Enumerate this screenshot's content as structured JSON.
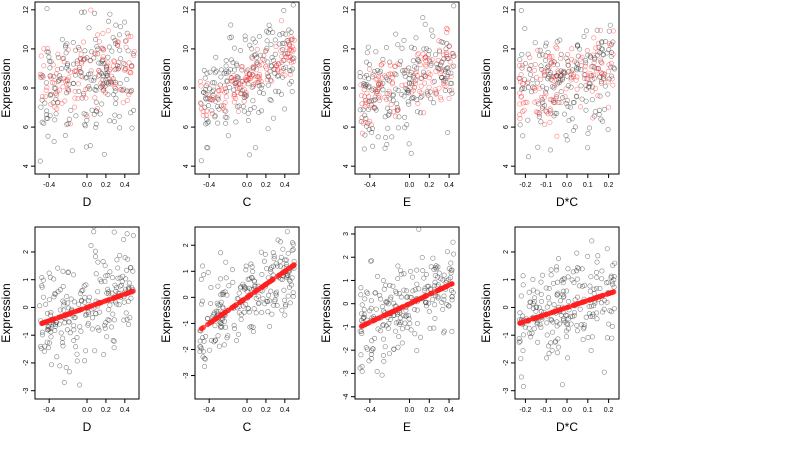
{
  "chart_data": [
    {
      "type": "scatter",
      "panel": "top-1",
      "xlabel": "D",
      "ylabel": "Expression",
      "xlim": [
        -0.55,
        0.55
      ],
      "ylim": [
        3.6,
        12.4
      ],
      "xticks": [
        -0.4,
        0.0,
        0.2,
        0.4
      ],
      "xtick_labels": [
        "-0.4",
        "0.0",
        "0.2",
        "0.4"
      ],
      "yticks": [
        4,
        6,
        8,
        10,
        12
      ],
      "ytick_labels": [
        "4",
        "6",
        "8",
        "10",
        "12"
      ],
      "series": [
        {
          "name": "",
          "color": "#222222",
          "marker": "open-circle",
          "x_range": [
            -0.5,
            0.5
          ],
          "y_center": 8.4,
          "y_spread": 1.4,
          "slope": 1.5,
          "count": 200
        },
        {
          "name": "",
          "color": "#ff2020",
          "marker": "open-circle",
          "x_range": [
            -0.5,
            0.5
          ],
          "y_center": 8.6,
          "y_spread": 0.9,
          "slope": 1.5,
          "count": 130
        }
      ]
    },
    {
      "type": "scatter",
      "panel": "top-2",
      "xlabel": "C",
      "ylabel": "Expression",
      "xlim": [
        -0.55,
        0.55
      ],
      "ylim": [
        3.6,
        12.4
      ],
      "xticks": [
        -0.4,
        0.0,
        0.2,
        0.4
      ],
      "xtick_labels": [
        "-0.4",
        "0.0",
        "0.2",
        "0.4"
      ],
      "yticks": [
        4,
        6,
        8,
        10,
        12
      ],
      "ytick_labels": [
        "4",
        "6",
        "8",
        "10",
        "12"
      ],
      "series": [
        {
          "name": "",
          "color": "#222222",
          "marker": "open-circle",
          "x_range": [
            -0.5,
            0.5
          ],
          "y_center": 8.4,
          "y_spread": 1.3,
          "slope": 2.8,
          "count": 200
        },
        {
          "name": "",
          "color": "#ff2020",
          "marker": "open-circle",
          "x_range": [
            -0.5,
            0.5
          ],
          "y_center": 8.4,
          "y_spread": 0.5,
          "slope": 2.8,
          "count": 130
        }
      ]
    },
    {
      "type": "scatter",
      "panel": "top-3",
      "xlabel": "E",
      "ylabel": "Expression",
      "xlim": [
        -0.55,
        0.5
      ],
      "ylim": [
        3.6,
        12.4
      ],
      "xticks": [
        -0.4,
        0.0,
        0.2,
        0.4
      ],
      "xtick_labels": [
        "-0.4",
        "0.0",
        "0.2",
        "0.4"
      ],
      "yticks": [
        4,
        6,
        8,
        10,
        12
      ],
      "ytick_labels": [
        "4",
        "6",
        "8",
        "10",
        "12"
      ],
      "series": [
        {
          "name": "",
          "color": "#222222",
          "marker": "open-circle",
          "x_range": [
            -0.5,
            0.45
          ],
          "y_center": 8.3,
          "y_spread": 1.3,
          "slope": 1.8,
          "count": 200
        },
        {
          "name": "",
          "color": "#ff2020",
          "marker": "open-circle",
          "x_range": [
            -0.5,
            0.45
          ],
          "y_center": 8.4,
          "y_spread": 0.8,
          "slope": 1.8,
          "count": 130
        }
      ]
    },
    {
      "type": "scatter",
      "panel": "top-4",
      "xlabel": "D*C",
      "ylabel": "Expression",
      "xlim": [
        -0.25,
        0.25
      ],
      "ylim": [
        3.6,
        12.4
      ],
      "xticks": [
        -0.2,
        -0.1,
        0.0,
        0.1,
        0.2
      ],
      "xtick_labels": [
        "-0.2",
        "-0.1",
        "0.0",
        "0.1",
        "0.2"
      ],
      "yticks": [
        4,
        6,
        8,
        10,
        12
      ],
      "ytick_labels": [
        "4",
        "6",
        "8",
        "10",
        "12"
      ],
      "series": [
        {
          "name": "",
          "color": "#222222",
          "marker": "open-circle",
          "x_range": [
            -0.23,
            0.23
          ],
          "y_center": 8.4,
          "y_spread": 1.3,
          "slope": 3.0,
          "count": 200
        },
        {
          "name": "",
          "color": "#ff2020",
          "marker": "open-circle",
          "x_range": [
            -0.23,
            0.23
          ],
          "y_center": 8.5,
          "y_spread": 0.9,
          "slope": 3.0,
          "count": 140
        }
      ]
    },
    {
      "type": "scatter",
      "panel": "bottom-1",
      "xlabel": "D",
      "ylabel": "Expression",
      "xlim": [
        -0.55,
        0.55
      ],
      "ylim": [
        -3.3,
        2.9
      ],
      "xticks": [
        -0.4,
        0.0,
        0.2,
        0.4
      ],
      "xtick_labels": [
        "-0.4",
        "0.0",
        "0.2",
        "0.4"
      ],
      "yticks": [
        -3,
        -2,
        -1,
        0,
        1,
        2
      ],
      "ytick_labels": [
        "-3",
        "-2",
        "-1",
        "0",
        "1",
        "2"
      ],
      "series": [
        {
          "name": "",
          "color": "#222222",
          "marker": "open-circle",
          "x_range": [
            -0.5,
            0.5
          ],
          "y_center": 0.0,
          "y_spread": 0.9,
          "slope": 1.2,
          "count": 220
        },
        {
          "name": "",
          "color": "#ff2020",
          "marker": "filled-circle",
          "x_range": [
            -0.5,
            0.5
          ],
          "y_center": 0.0,
          "y_spread": 0.0,
          "slope": 1.2,
          "count": 110
        }
      ]
    },
    {
      "type": "scatter",
      "panel": "bottom-2",
      "xlabel": "C",
      "ylabel": "Expression",
      "xlim": [
        -0.55,
        0.55
      ],
      "ylim": [
        -3.9,
        2.7
      ],
      "xticks": [
        -0.4,
        0.0,
        0.2,
        0.4
      ],
      "xtick_labels": [
        "-0.4",
        "0.0",
        "0.2",
        "0.4"
      ],
      "yticks": [
        -3,
        -2,
        -1,
        0,
        1,
        2
      ],
      "ytick_labels": [
        "-3",
        "-2",
        "-1",
        "0",
        "1",
        "2"
      ],
      "series": [
        {
          "name": "",
          "color": "#222222",
          "marker": "open-circle",
          "x_range": [
            -0.5,
            0.5
          ],
          "y_center": 0.0,
          "y_spread": 0.8,
          "slope": 2.5,
          "count": 220
        },
        {
          "name": "",
          "color": "#ff2020",
          "marker": "filled-circle",
          "x_range": [
            -0.5,
            0.5
          ],
          "y_center": 0.0,
          "y_spread": 0.0,
          "slope": 2.5,
          "count": 110
        }
      ]
    },
    {
      "type": "scatter",
      "panel": "bottom-3",
      "xlabel": "E",
      "ylabel": "Expression",
      "xlim": [
        -0.55,
        0.5
      ],
      "ylim": [
        -4.1,
        3.3
      ],
      "xticks": [
        -0.4,
        0.0,
        0.2,
        0.4
      ],
      "xtick_labels": [
        "-0.4",
        "0.0",
        "0.2",
        "0.4"
      ],
      "yticks": [
        -4,
        -3,
        -2,
        -1,
        0,
        1,
        2,
        3
      ],
      "ytick_labels": [
        "-4",
        "-3",
        "-2",
        "-1",
        "0",
        "1",
        "2",
        "3"
      ],
      "series": [
        {
          "name": "",
          "color": "#222222",
          "marker": "open-circle",
          "x_range": [
            -0.5,
            0.45
          ],
          "y_center": 0.0,
          "y_spread": 0.9,
          "slope": 2.0,
          "count": 220
        },
        {
          "name": "",
          "color": "#ff2020",
          "marker": "filled-circle",
          "x_range": [
            -0.5,
            0.45
          ],
          "y_center": 0.0,
          "y_spread": 0.0,
          "slope": 2.0,
          "count": 110
        }
      ]
    },
    {
      "type": "scatter",
      "panel": "bottom-4",
      "xlabel": "D*C",
      "ylabel": "Expression",
      "xlim": [
        -0.25,
        0.25
      ],
      "ylim": [
        -3.3,
        2.9
      ],
      "xticks": [
        -0.2,
        -0.1,
        0.0,
        0.1,
        0.2
      ],
      "xtick_labels": [
        "-0.2",
        "-0.1",
        "0.0",
        "0.1",
        "0.2"
      ],
      "yticks": [
        -3,
        -2,
        -1,
        0,
        1,
        2
      ],
      "ytick_labels": [
        "-3",
        "-2",
        "-1",
        "0",
        "1",
        "2"
      ],
      "series": [
        {
          "name": "",
          "color": "#222222",
          "marker": "open-circle",
          "x_range": [
            -0.23,
            0.23
          ],
          "y_center": 0.0,
          "y_spread": 0.9,
          "slope": 2.5,
          "count": 220
        },
        {
          "name": "",
          "color": "#ff2020",
          "marker": "filled-circle",
          "x_range": [
            -0.23,
            0.23
          ],
          "y_center": 0.0,
          "y_spread": 0.0,
          "slope": 2.5,
          "count": 110
        }
      ]
    }
  ]
}
